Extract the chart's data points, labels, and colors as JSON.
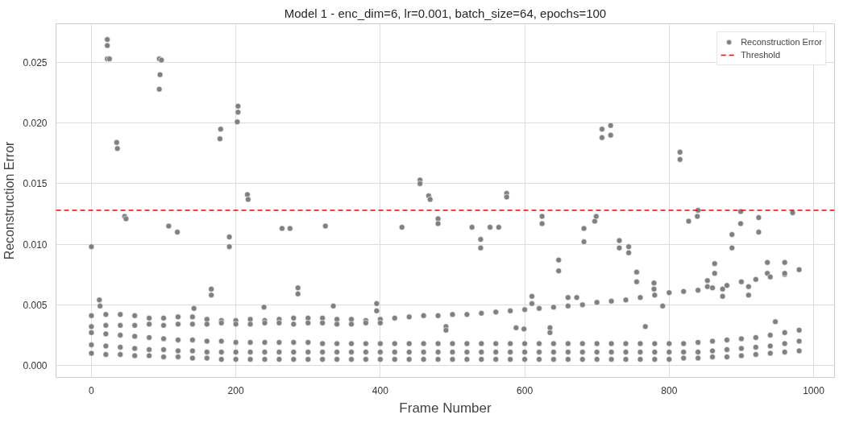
{
  "chart_data": {
    "type": "scatter",
    "title": "Model 1 - enc_dim=6, lr=0.001, batch_size=64, epochs=100",
    "xlabel": "Frame Number",
    "ylabel": "Reconstruction Error",
    "xlim": [
      -49,
      1029
    ],
    "ylim": [
      -0.001,
      0.0282
    ],
    "xticks": [
      0,
      200,
      400,
      600,
      800,
      1000
    ],
    "yticks": [
      {
        "value": 0,
        "label": "0.000"
      },
      {
        "value": 0.005,
        "label": "0.005"
      },
      {
        "value": 0.01,
        "label": "0.010"
      },
      {
        "value": 0.015,
        "label": "0.015"
      },
      {
        "value": 0.02,
        "label": "0.020"
      },
      {
        "value": 0.025,
        "label": "0.025"
      }
    ],
    "grid": true,
    "legend": "top right",
    "marker": "circle",
    "ref_lines": [
      {
        "axis": "y",
        "value": 0.0128,
        "label": "Threshold",
        "color": "#ff0000",
        "line_style": "dashed"
      }
    ],
    "series": [
      {
        "name": "Reconstruction Error",
        "color": "#808080",
        "x": [
          0,
          22,
          22,
          22,
          25,
          35,
          36,
          46,
          48,
          11,
          12,
          94,
          97,
          95,
          94,
          107,
          119,
          142,
          166,
          166,
          179,
          178,
          191,
          191,
          203,
          203,
          202,
          216,
          217,
          239,
          264,
          275,
          286,
          286,
          324,
          335,
          395,
          395,
          430,
          455,
          455,
          467,
          469,
          480,
          480,
          491,
          491,
          527,
          539,
          539,
          552,
          564,
          575,
          575,
          588,
          599,
          610,
          610,
          624,
          624,
          635,
          635,
          647,
          647,
          660,
          672,
          682,
          682,
          697,
          699,
          707,
          707,
          719,
          719,
          731,
          731,
          744,
          744,
          755,
          755,
          767,
          779,
          779,
          791,
          815,
          815,
          827,
          839,
          840,
          853,
          853,
          863,
          863,
          874,
          874,
          887,
          887,
          899,
          899,
          910,
          910,
          924,
          924,
          936,
          936,
          947,
          960,
          960,
          971
        ],
        "values": [
          0.0098,
          0.0269,
          0.0264,
          0.0253,
          0.0253,
          0.0184,
          0.0179,
          0.0123,
          0.0121,
          0.0054,
          0.0049,
          0.0253,
          0.0252,
          0.024,
          0.0228,
          0.0115,
          0.011,
          0.0047,
          0.0063,
          0.0058,
          0.0195,
          0.0187,
          0.0106,
          0.0098,
          0.0214,
          0.0209,
          0.0201,
          0.0141,
          0.0137,
          0.0048,
          0.0113,
          0.0113,
          0.0064,
          0.0059,
          0.0115,
          0.0049,
          0.0051,
          0.0045,
          0.0114,
          0.0153,
          0.015,
          0.014,
          0.0137,
          0.0121,
          0.0117,
          0.0032,
          0.0029,
          0.0114,
          0.0104,
          0.0097,
          0.0114,
          0.0114,
          0.0142,
          0.0139,
          0.0031,
          0.003,
          0.0057,
          0.0051,
          0.0123,
          0.0117,
          0.0031,
          0.0027,
          0.0087,
          0.0078,
          0.0056,
          0.0056,
          0.0113,
          0.0102,
          0.0119,
          0.0123,
          0.0195,
          0.0188,
          0.0198,
          0.019,
          0.0103,
          0.0097,
          0.0098,
          0.0093,
          0.0077,
          0.0069,
          0.0032,
          0.0068,
          0.0063,
          0.0049,
          0.0176,
          0.017,
          0.0119,
          0.0123,
          0.0128,
          0.007,
          0.0065,
          0.0084,
          0.0076,
          0.0063,
          0.0057,
          0.0108,
          0.0097,
          0.0127,
          0.0117,
          0.0065,
          0.0058,
          0.0122,
          0.011,
          0.0085,
          0.0076,
          0.0036,
          0.0085,
          0.0075,
          0.0126
        ]
      },
      {
        "color": "#808080",
        "x": [
          0,
          20,
          40,
          60,
          80,
          100,
          120,
          140,
          160,
          180,
          200,
          220,
          240,
          260,
          280,
          300,
          320,
          340,
          360,
          380,
          400,
          420,
          440,
          460,
          480,
          500,
          520,
          540,
          560,
          580,
          600,
          620,
          640,
          660,
          680,
          700,
          720,
          740,
          760,
          780,
          800,
          820,
          840,
          860,
          880,
          900,
          920,
          940,
          960,
          980
        ],
        "values": [
          0.0041,
          0.0042,
          0.0042,
          0.0041,
          0.0039,
          0.0039,
          0.004,
          0.004,
          0.0038,
          0.0037,
          0.0037,
          0.0038,
          0.0037,
          0.0038,
          0.0039,
          0.0039,
          0.0039,
          0.0038,
          0.0038,
          0.0037,
          0.0038,
          0.0039,
          0.004,
          0.0041,
          0.0041,
          0.0042,
          0.0042,
          0.0043,
          0.0044,
          0.0045,
          0.0046,
          0.0047,
          0.0048,
          0.0049,
          0.005,
          0.0052,
          0.0053,
          0.0054,
          0.0056,
          0.0058,
          0.006,
          0.0061,
          0.0062,
          0.0064,
          0.0066,
          0.0069,
          0.0071,
          0.0073,
          0.0076,
          0.0079
        ]
      },
      {
        "color": "#808080",
        "x": [
          0,
          20,
          40,
          60,
          80,
          100,
          120,
          140,
          160,
          180,
          200,
          220,
          240,
          260,
          280,
          300,
          320,
          340,
          360,
          380,
          400
        ],
        "values": [
          0.0032,
          0.0033,
          0.0033,
          0.0033,
          0.0034,
          0.0033,
          0.0034,
          0.0034,
          0.0034,
          0.0035,
          0.0034,
          0.0034,
          0.0035,
          0.0035,
          0.0034,
          0.0035,
          0.0035,
          0.0034,
          0.0034,
          0.0035,
          0.0035
        ]
      },
      {
        "color": "#808080",
        "x": [
          0,
          20,
          40,
          60,
          80,
          100,
          120,
          140,
          160,
          180,
          200,
          220,
          240,
          260,
          280,
          300,
          320,
          340,
          360,
          380,
          400,
          420,
          440,
          460,
          480,
          500,
          520,
          540,
          560,
          580,
          600,
          620,
          640,
          660,
          680,
          700,
          720,
          740,
          760,
          780,
          800,
          820,
          840,
          860,
          880,
          900,
          920,
          940,
          960,
          980
        ],
        "values": [
          0.0027,
          0.0026,
          0.0025,
          0.0024,
          0.0023,
          0.0022,
          0.0021,
          0.0021,
          0.002,
          0.002,
          0.0019,
          0.0019,
          0.0019,
          0.0019,
          0.0019,
          0.0019,
          0.0018,
          0.0018,
          0.0018,
          0.0018,
          0.0018,
          0.0018,
          0.0018,
          0.0018,
          0.0018,
          0.0018,
          0.0018,
          0.0018,
          0.0018,
          0.0018,
          0.0018,
          0.0018,
          0.0018,
          0.0018,
          0.0018,
          0.0018,
          0.0018,
          0.0018,
          0.0018,
          0.0018,
          0.0018,
          0.0018,
          0.0019,
          0.002,
          0.0021,
          0.0022,
          0.0023,
          0.0025,
          0.0027,
          0.0029
        ]
      },
      {
        "color": "#808080",
        "x": [
          0,
          20,
          40,
          60,
          80,
          100,
          120,
          140,
          160,
          180,
          200,
          220,
          240,
          260,
          280,
          300,
          320,
          340,
          360,
          380,
          400,
          420,
          440,
          460,
          480,
          500,
          520,
          540,
          560,
          580,
          600,
          620,
          640,
          660,
          680,
          700,
          720,
          740,
          760,
          780,
          800,
          820,
          840,
          860,
          880,
          900,
          920,
          940,
          960,
          980
        ],
        "values": [
          0.0017,
          0.0016,
          0.0015,
          0.0014,
          0.0013,
          0.0013,
          0.0012,
          0.0012,
          0.0011,
          0.0011,
          0.0011,
          0.0011,
          0.0011,
          0.0011,
          0.0011,
          0.0011,
          0.0011,
          0.0011,
          0.0011,
          0.0011,
          0.0011,
          0.0011,
          0.0011,
          0.0011,
          0.0011,
          0.0011,
          0.0011,
          0.0011,
          0.0011,
          0.0011,
          0.0011,
          0.0011,
          0.0011,
          0.0011,
          0.0011,
          0.0011,
          0.0011,
          0.0011,
          0.0011,
          0.0011,
          0.0011,
          0.0011,
          0.0011,
          0.0012,
          0.0013,
          0.0014,
          0.0015,
          0.0016,
          0.0018,
          0.002
        ]
      },
      {
        "color": "#808080",
        "x": [
          0,
          20,
          40,
          60,
          80,
          100,
          120,
          140,
          160,
          180,
          200,
          220,
          240,
          260,
          280,
          300,
          320,
          340,
          360,
          380,
          400,
          420,
          440,
          460,
          480,
          500,
          520,
          540,
          560,
          580,
          600,
          620,
          640,
          660,
          680,
          700,
          720,
          740,
          760,
          780,
          800,
          820,
          840,
          860,
          880,
          900,
          920,
          940,
          960,
          980
        ],
        "values": [
          0.001,
          0.0009,
          0.0009,
          0.0008,
          0.0008,
          0.0007,
          0.0007,
          0.0006,
          0.0006,
          0.0005,
          0.0005,
          0.0005,
          0.0005,
          0.0005,
          0.0005,
          0.0005,
          0.0005,
          0.0005,
          0.0005,
          0.0005,
          0.0005,
          0.0005,
          0.0005,
          0.0005,
          0.0005,
          0.0005,
          0.0005,
          0.0005,
          0.0005,
          0.0005,
          0.0005,
          0.0005,
          0.0005,
          0.0005,
          0.0005,
          0.0005,
          0.0005,
          0.0005,
          0.0005,
          0.0005,
          0.0005,
          0.0006,
          0.0006,
          0.0007,
          0.0007,
          0.0008,
          0.0009,
          0.001,
          0.0011,
          0.0012
        ]
      }
    ]
  }
}
